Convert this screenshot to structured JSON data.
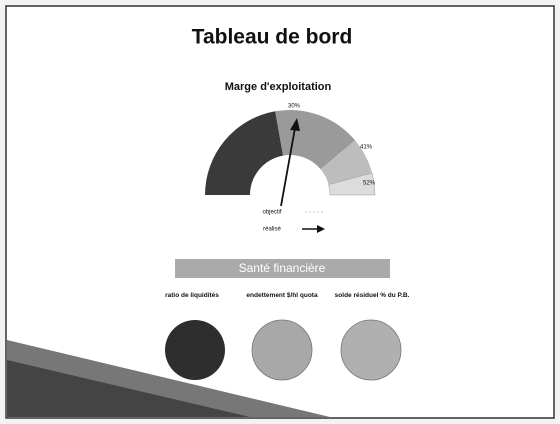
{
  "header": {
    "title": "Tableau de bord"
  },
  "gauge": {
    "title": "Marge d'exploitation",
    "labels": [
      "30%",
      "41%",
      "52%"
    ],
    "legend": [
      "objectif",
      "réalisé"
    ]
  },
  "section": {
    "title": "Santé financière",
    "indicators": [
      "ratio de liquidités",
      "endettement $/hl quota",
      "solde résiduel % du P.B."
    ]
  }
}
